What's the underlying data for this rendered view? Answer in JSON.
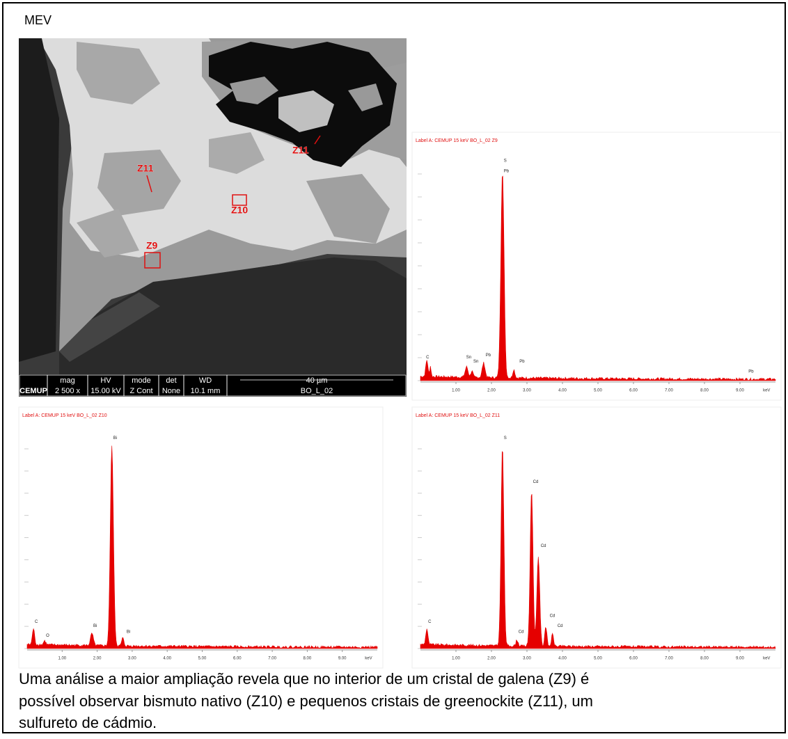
{
  "label": "MEV",
  "sem_image": {
    "markers": [
      "Z11",
      "Z10",
      "Z9",
      "Z11"
    ],
    "info_bar": {
      "logo": "CEMUP",
      "headers": [
        "mag",
        "HV",
        "mode",
        "det",
        "WD"
      ],
      "values": [
        "2 500 x",
        "15.00 kV",
        "Z Cont",
        "None",
        "10.1 mm"
      ],
      "scale": "40 µm",
      "sample": "BO_L_02"
    }
  },
  "spectra": [
    {
      "header": "Label A: CEMUP    15 keV   BO_L_02 Z9",
      "peak_labels": [
        "C",
        "Sn",
        "Sn",
        "Pb",
        "S",
        "Pb",
        "Pb",
        "Pb"
      ],
      "x_ticks": [
        "1.00",
        "2.00",
        "3.00",
        "4.00",
        "5.00",
        "6.00",
        "7.00",
        "8.00",
        "9.00"
      ],
      "x_unit": "keV"
    },
    {
      "header": "Label A: CEMUP    15 keV   BO_L_02 Z10",
      "peak_labels": [
        "C",
        "O",
        "Bi",
        "Bi",
        "Bi"
      ],
      "x_ticks": [
        "1.00",
        "2.00",
        "3.00",
        "4.00",
        "5.00",
        "6.00",
        "7.00",
        "8.00",
        "9.00"
      ],
      "x_unit": "keV"
    },
    {
      "header": "Label A: CEMUP    15 keV   BO_L_02 Z11",
      "peak_labels": [
        "C",
        "S",
        "Cd",
        "Cd",
        "Cd",
        "Cd",
        "Cd"
      ],
      "x_ticks": [
        "1.00",
        "2.00",
        "3.00",
        "4.00",
        "5.00",
        "6.00",
        "7.00",
        "8.00",
        "9.00"
      ],
      "x_unit": "keV"
    }
  ],
  "caption": [
    "Uma análise a maior ampliação revela que no interior de um cristal de galena (Z9) é",
    "possível observar bismuto nativo (Z10) e pequenos cristais de greenockite (Z11), um",
    "sulfureto de cádmio."
  ]
}
